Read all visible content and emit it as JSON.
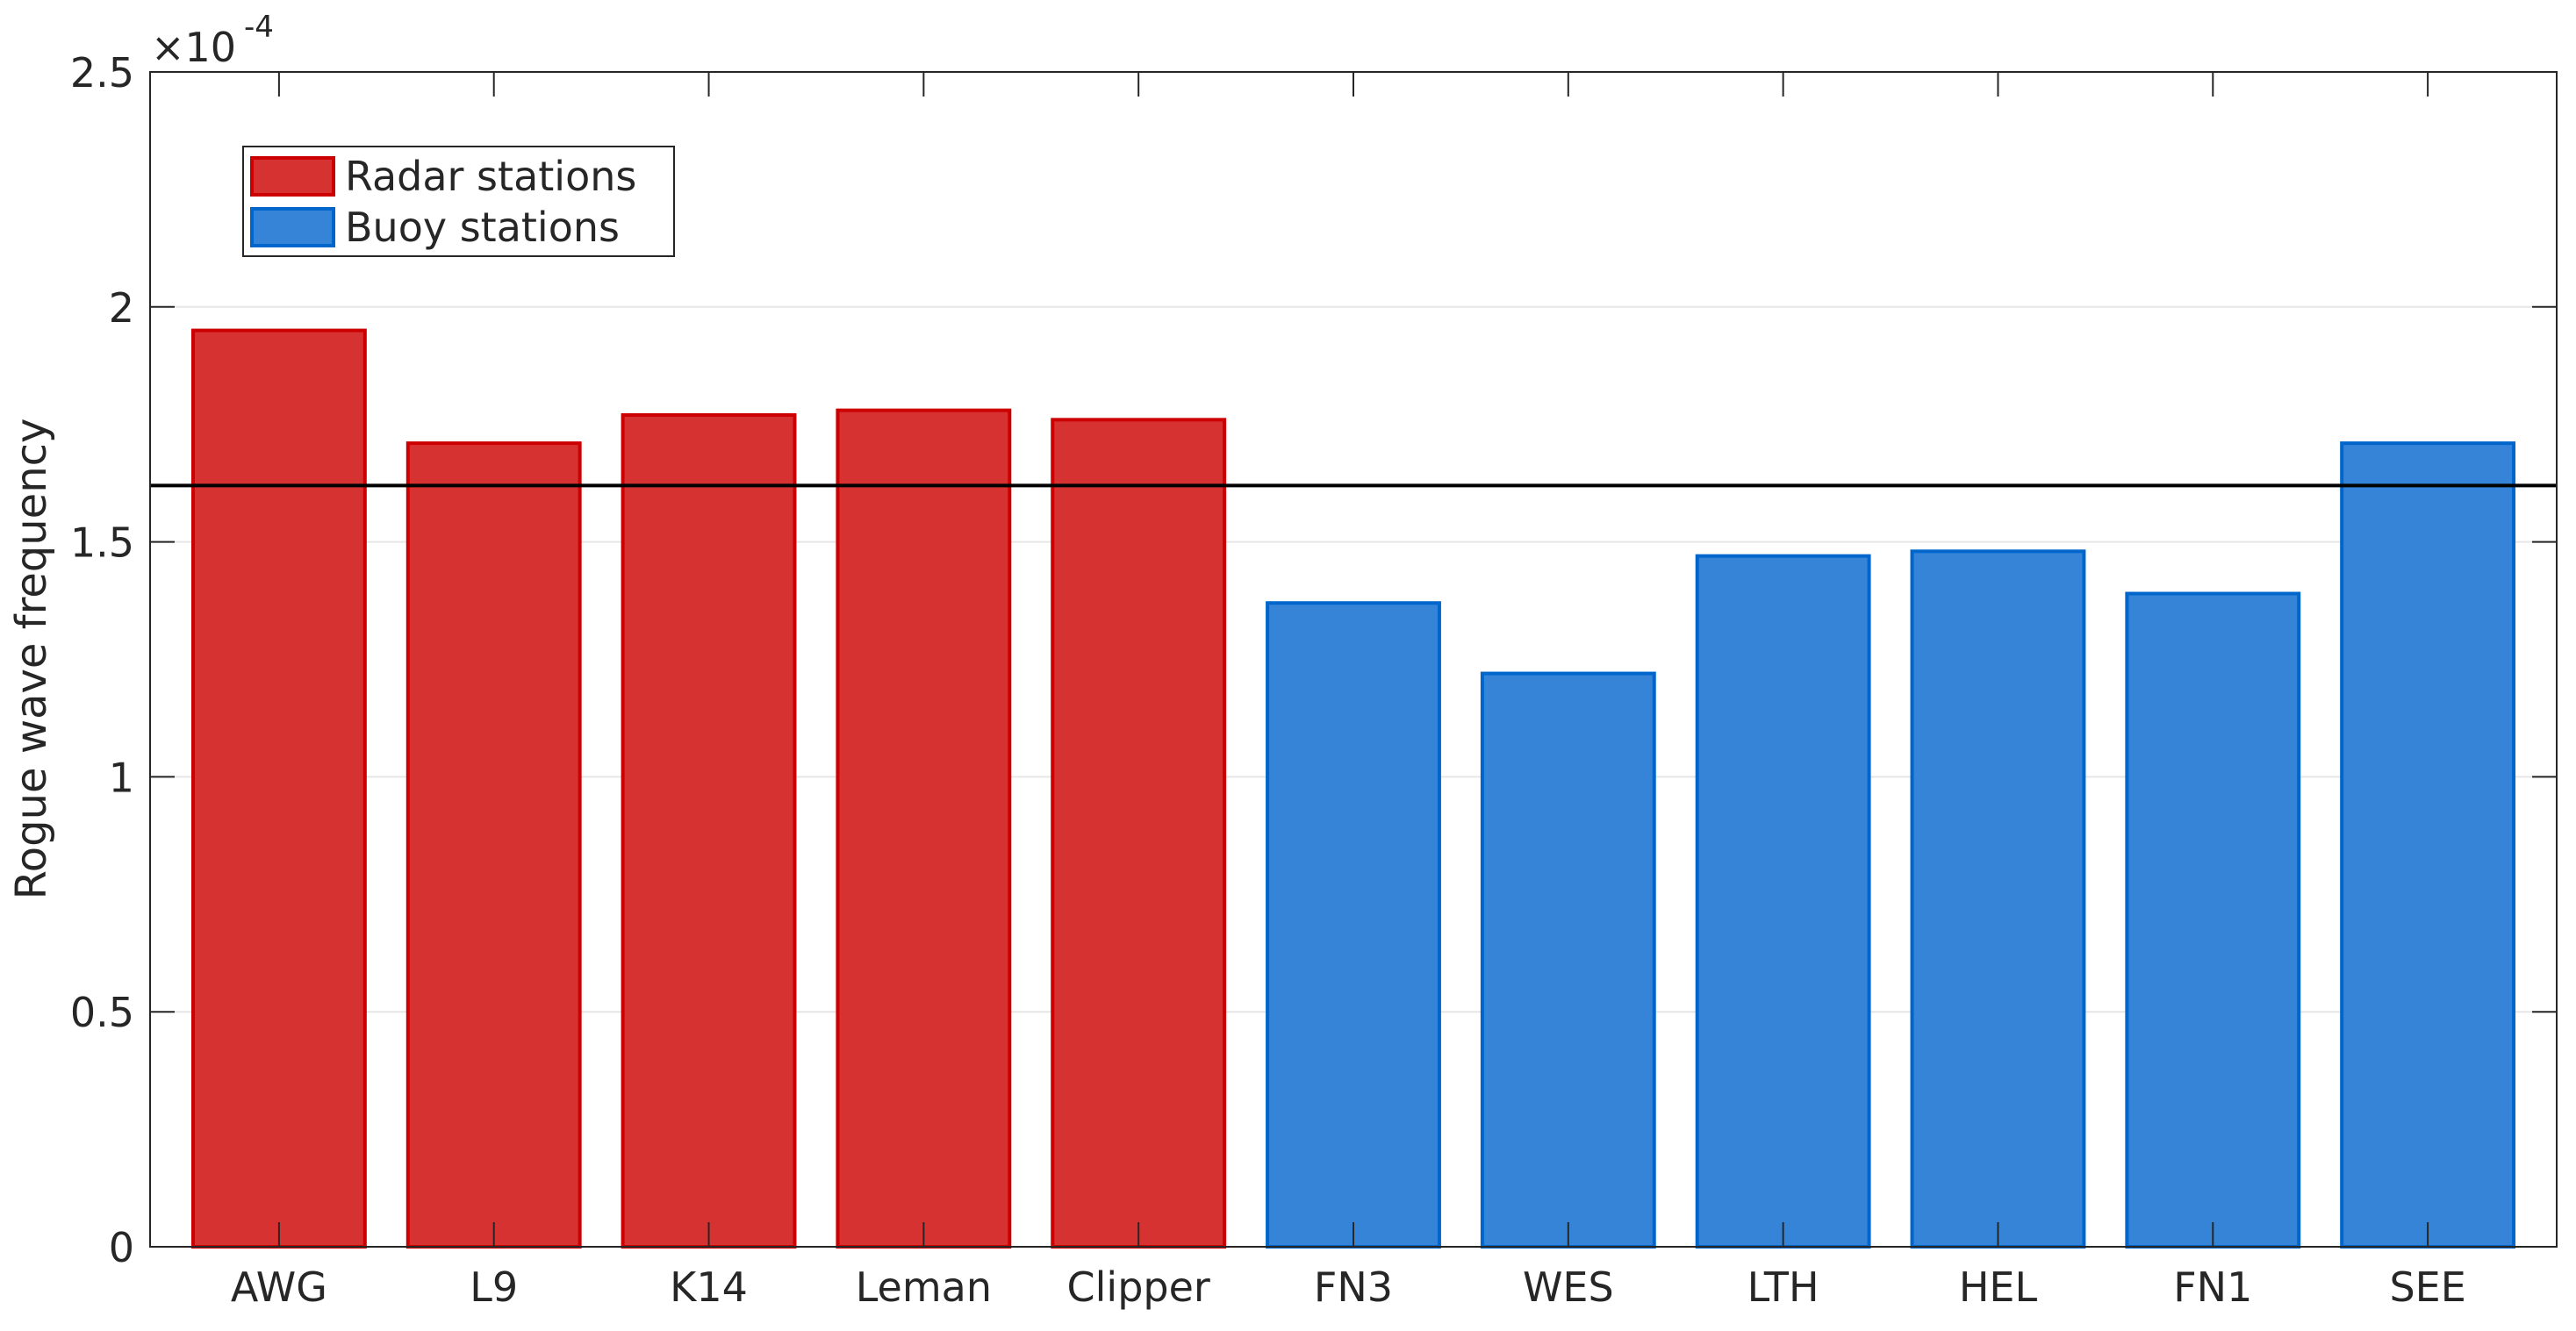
{
  "chart_data": {
    "type": "bar",
    "title": "",
    "xlabel": "",
    "ylabel": "Rogue wave frequency",
    "y_exponent_label": "×10",
    "y_exponent": "-4",
    "categories": [
      "AWG",
      "L9",
      "K14",
      "Leman",
      "Clipper",
      "FN3",
      "WES",
      "LTH",
      "HEL",
      "FN1",
      "SEE"
    ],
    "series": [
      {
        "name": "Radar stations",
        "color": "#d73232",
        "edge": "#cc0000",
        "values": [
          1.95,
          1.71,
          1.77,
          1.78,
          1.76,
          null,
          null,
          null,
          null,
          null,
          null
        ]
      },
      {
        "name": "Buoy stations",
        "color": "#3584d8",
        "edge": "#0066cc",
        "values": [
          null,
          null,
          null,
          null,
          null,
          1.37,
          1.22,
          1.47,
          1.48,
          1.39,
          1.71
        ]
      }
    ],
    "value_scale": 0.0001,
    "reference_line": {
      "value": 1.62,
      "color": "#000000"
    },
    "ylim": [
      0,
      2.5
    ],
    "yticks": [
      0,
      0.5,
      1,
      1.5,
      2,
      2.5
    ],
    "ytick_labels": [
      "0",
      "0.5",
      "1",
      "1.5",
      "2",
      "2.5"
    ],
    "grid": "horizontal",
    "legend": "top-left"
  }
}
